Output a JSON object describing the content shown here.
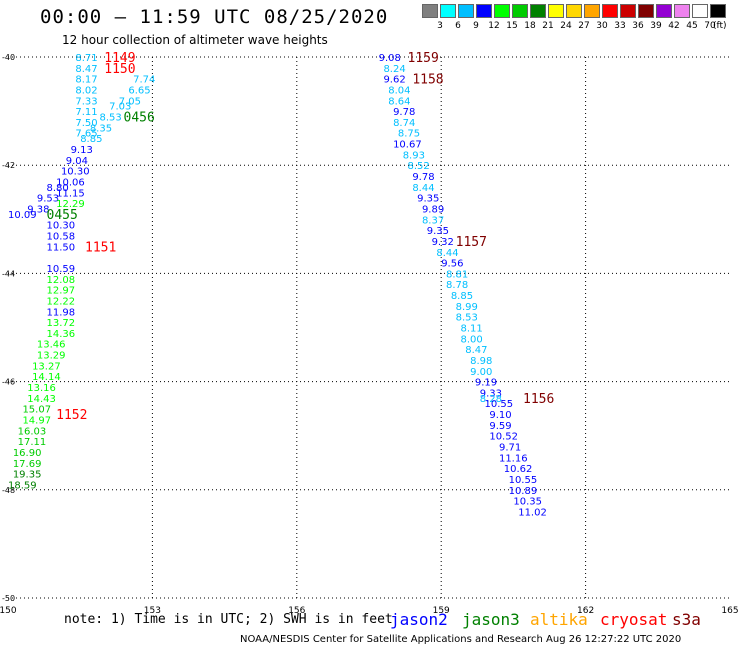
{
  "header": {
    "title": "00:00 – 11:59 UTC 08/25/2020",
    "subtitle": "12 hour collection of altimeter wave heights"
  },
  "scale": {
    "labels": [
      "3",
      "6",
      "9",
      "12",
      "15",
      "18",
      "21",
      "24",
      "27",
      "30",
      "33",
      "36",
      "39",
      "42",
      "45",
      "70"
    ],
    "unit": "(ft)",
    "colors": [
      "#808080",
      "#00ffff",
      "#00bfff",
      "#0000ff",
      "#00ff00",
      "#00cc00",
      "#008000",
      "#ffff00",
      "#ffd700",
      "#ffa500",
      "#ff0000",
      "#cc0000",
      "#800000",
      "#9400d3",
      "#ee82ee",
      "#ffffff",
      "#000000"
    ]
  },
  "footer": {
    "note": "note: 1) Time is in UTC; 2) SWH is in feet",
    "credit": "NOAA/NESDIS Center for Satellite Applications and Research   Aug 26 12:27:22 UTC 2020",
    "satellites": [
      {
        "name": "jason2",
        "color": "#0000ff"
      },
      {
        "name": "jason3",
        "color": "#008000"
      },
      {
        "name": "altika",
        "color": "#ffa500"
      },
      {
        "name": "cryosat",
        "color": "#ff0000"
      },
      {
        "name": "s3a",
        "color": "#800000"
      }
    ]
  },
  "chart_data": {
    "type": "scatter",
    "xlim": [
      150,
      165
    ],
    "ylim": [
      -50,
      -40
    ],
    "xticks": [
      "150",
      "153",
      "156",
      "159",
      "162",
      "165"
    ],
    "yticks": [
      "-40",
      "-42",
      "-44",
      "-46",
      "-48",
      "-50"
    ],
    "grid": true,
    "labels": [
      {
        "t": "8.71",
        "x": 151.4,
        "y": -40.0,
        "c": "#00bfff"
      },
      {
        "t": "8.47",
        "x": 151.4,
        "y": -40.2,
        "c": "#00bfff"
      },
      {
        "t": "8.17",
        "x": 151.4,
        "y": -40.4,
        "c": "#00bfff"
      },
      {
        "t": "8.02",
        "x": 151.4,
        "y": -40.6,
        "c": "#00bfff"
      },
      {
        "t": "7.33",
        "x": 151.4,
        "y": -40.8,
        "c": "#00bfff"
      },
      {
        "t": "7.11",
        "x": 151.4,
        "y": -41.0,
        "c": "#00bfff"
      },
      {
        "t": "7.50",
        "x": 151.4,
        "y": -41.2,
        "c": "#00bfff"
      },
      {
        "t": "7.65",
        "x": 151.4,
        "y": -41.4,
        "c": "#00bfff"
      },
      {
        "t": "7.74",
        "x": 152.6,
        "y": -40.4,
        "c": "#00bfff"
      },
      {
        "t": "6.65",
        "x": 152.5,
        "y": -40.6,
        "c": "#00bfff"
      },
      {
        "t": "7.05",
        "x": 152.3,
        "y": -40.8,
        "c": "#00bfff"
      },
      {
        "t": "7.03",
        "x": 152.1,
        "y": -40.9,
        "c": "#00bfff"
      },
      {
        "t": "8.53",
        "x": 151.9,
        "y": -41.1,
        "c": "#00bfff"
      },
      {
        "t": "8.35",
        "x": 151.7,
        "y": -41.3,
        "c": "#00bfff"
      },
      {
        "t": "8.85",
        "x": 151.5,
        "y": -41.5,
        "c": "#00bfff"
      },
      {
        "t": "9.13",
        "x": 151.3,
        "y": -41.7,
        "c": "#0000ff"
      },
      {
        "t": "9.04",
        "x": 151.2,
        "y": -41.9,
        "c": "#0000ff"
      },
      {
        "t": "10.30",
        "x": 151.1,
        "y": -42.1,
        "c": "#0000ff"
      },
      {
        "t": "10.06",
        "x": 151.0,
        "y": -42.3,
        "c": "#0000ff"
      },
      {
        "t": "8.80",
        "x": 150.8,
        "y": -42.4,
        "c": "#0000ff"
      },
      {
        "t": "11.15",
        "x": 151.0,
        "y": -42.5,
        "c": "#0000ff"
      },
      {
        "t": "9.53",
        "x": 150.6,
        "y": -42.6,
        "c": "#0000ff"
      },
      {
        "t": "12.29",
        "x": 151.0,
        "y": -42.7,
        "c": "#00ff00"
      },
      {
        "t": "9.38",
        "x": 150.4,
        "y": -42.8,
        "c": "#0000ff"
      },
      {
        "t": "10.09",
        "x": 150.0,
        "y": -42.9,
        "c": "#0000ff"
      },
      {
        "t": "10.30",
        "x": 150.8,
        "y": -43.1,
        "c": "#0000ff"
      },
      {
        "t": "10.58",
        "x": 150.8,
        "y": -43.3,
        "c": "#0000ff"
      },
      {
        "t": "11.50",
        "x": 150.8,
        "y": -43.5,
        "c": "#0000ff"
      },
      {
        "t": "10.59",
        "x": 150.8,
        "y": -43.9,
        "c": "#0000ff"
      },
      {
        "t": "12.08",
        "x": 150.8,
        "y": -44.1,
        "c": "#00ff00"
      },
      {
        "t": "12.97",
        "x": 150.8,
        "y": -44.3,
        "c": "#00ff00"
      },
      {
        "t": "12.22",
        "x": 150.8,
        "y": -44.5,
        "c": "#00ff00"
      },
      {
        "t": "11.98",
        "x": 150.8,
        "y": -44.7,
        "c": "#0000ff"
      },
      {
        "t": "13.72",
        "x": 150.8,
        "y": -44.9,
        "c": "#00ff00"
      },
      {
        "t": "14.36",
        "x": 150.8,
        "y": -45.1,
        "c": "#00ff00"
      },
      {
        "t": "13.46",
        "x": 150.6,
        "y": -45.3,
        "c": "#00ff00"
      },
      {
        "t": "13.29",
        "x": 150.6,
        "y": -45.5,
        "c": "#00ff00"
      },
      {
        "t": "13.27",
        "x": 150.5,
        "y": -45.7,
        "c": "#00ff00"
      },
      {
        "t": "14.14",
        "x": 150.5,
        "y": -45.9,
        "c": "#00ff00"
      },
      {
        "t": "13.16",
        "x": 150.4,
        "y": -46.1,
        "c": "#00ff00"
      },
      {
        "t": "14.43",
        "x": 150.4,
        "y": -46.3,
        "c": "#00ff00"
      },
      {
        "t": "15.07",
        "x": 150.3,
        "y": -46.5,
        "c": "#00cc00"
      },
      {
        "t": "14.97",
        "x": 150.3,
        "y": -46.7,
        "c": "#00ff00"
      },
      {
        "t": "16.03",
        "x": 150.2,
        "y": -46.9,
        "c": "#00cc00"
      },
      {
        "t": "17.11",
        "x": 150.2,
        "y": -47.1,
        "c": "#00cc00"
      },
      {
        "t": "16.90",
        "x": 150.1,
        "y": -47.3,
        "c": "#00cc00"
      },
      {
        "t": "17.69",
        "x": 150.1,
        "y": -47.5,
        "c": "#00cc00"
      },
      {
        "t": "19.35",
        "x": 150.1,
        "y": -47.7,
        "c": "#008000"
      },
      {
        "t": "18.59",
        "x": 150.0,
        "y": -47.9,
        "c": "#008000"
      },
      {
        "t": "9.08",
        "x": 157.7,
        "y": -40.0,
        "c": "#0000ff"
      },
      {
        "t": "8.24",
        "x": 157.8,
        "y": -40.2,
        "c": "#00bfff"
      },
      {
        "t": "9.62",
        "x": 157.8,
        "y": -40.4,
        "c": "#0000ff"
      },
      {
        "t": "8.04",
        "x": 157.9,
        "y": -40.6,
        "c": "#00bfff"
      },
      {
        "t": "8.64",
        "x": 157.9,
        "y": -40.8,
        "c": "#00bfff"
      },
      {
        "t": "9.78",
        "x": 158.0,
        "y": -41.0,
        "c": "#0000ff"
      },
      {
        "t": "8.74",
        "x": 158.0,
        "y": -41.2,
        "c": "#00bfff"
      },
      {
        "t": "8.75",
        "x": 158.1,
        "y": -41.4,
        "c": "#00bfff"
      },
      {
        "t": "10.67",
        "x": 158.0,
        "y": -41.6,
        "c": "#0000ff"
      },
      {
        "t": "8.93",
        "x": 158.2,
        "y": -41.8,
        "c": "#00bfff"
      },
      {
        "t": "8.52",
        "x": 158.3,
        "y": -42.0,
        "c": "#00bfff"
      },
      {
        "t": "9.78",
        "x": 158.4,
        "y": -42.2,
        "c": "#0000ff"
      },
      {
        "t": "8.44",
        "x": 158.4,
        "y": -42.4,
        "c": "#00bfff"
      },
      {
        "t": "9.35",
        "x": 158.5,
        "y": -42.6,
        "c": "#0000ff"
      },
      {
        "t": "9.89",
        "x": 158.6,
        "y": -42.8,
        "c": "#0000ff"
      },
      {
        "t": "8.37",
        "x": 158.6,
        "y": -43.0,
        "c": "#00bfff"
      },
      {
        "t": "9.35",
        "x": 158.7,
        "y": -43.2,
        "c": "#0000ff"
      },
      {
        "t": "9.32",
        "x": 158.8,
        "y": -43.4,
        "c": "#0000ff"
      },
      {
        "t": "8.44",
        "x": 158.9,
        "y": -43.6,
        "c": "#00bfff"
      },
      {
        "t": "9.56",
        "x": 159.0,
        "y": -43.8,
        "c": "#0000ff"
      },
      {
        "t": "8.81",
        "x": 159.1,
        "y": -44.0,
        "c": "#00bfff"
      },
      {
        "t": "8.78",
        "x": 159.1,
        "y": -44.2,
        "c": "#00bfff"
      },
      {
        "t": "8.85",
        "x": 159.2,
        "y": -44.4,
        "c": "#00bfff"
      },
      {
        "t": "8.99",
        "x": 159.3,
        "y": -44.6,
        "c": "#00bfff"
      },
      {
        "t": "8.53",
        "x": 159.3,
        "y": -44.8,
        "c": "#00bfff"
      },
      {
        "t": "8.11",
        "x": 159.4,
        "y": -45.0,
        "c": "#00bfff"
      },
      {
        "t": "8.00",
        "x": 159.4,
        "y": -45.2,
        "c": "#00bfff"
      },
      {
        "t": "8.47",
        "x": 159.5,
        "y": -45.4,
        "c": "#00bfff"
      },
      {
        "t": "8.98",
        "x": 159.6,
        "y": -45.6,
        "c": "#00bfff"
      },
      {
        "t": "9.00",
        "x": 159.6,
        "y": -45.8,
        "c": "#00bfff"
      },
      {
        "t": "9.19",
        "x": 159.7,
        "y": -46.0,
        "c": "#0000ff"
      },
      {
        "t": "9.33",
        "x": 159.8,
        "y": -46.2,
        "c": "#0000ff"
      },
      {
        "t": "8.28",
        "x": 159.8,
        "y": -46.3,
        "c": "#00bfff"
      },
      {
        "t": "10.55",
        "x": 159.9,
        "y": -46.4,
        "c": "#0000ff"
      },
      {
        "t": "9.10",
        "x": 160.0,
        "y": -46.6,
        "c": "#0000ff"
      },
      {
        "t": "9.59",
        "x": 160.0,
        "y": -46.8,
        "c": "#0000ff"
      },
      {
        "t": "10.52",
        "x": 160.0,
        "y": -47.0,
        "c": "#0000ff"
      },
      {
        "t": "9.71",
        "x": 160.2,
        "y": -47.2,
        "c": "#0000ff"
      },
      {
        "t": "11.16",
        "x": 160.2,
        "y": -47.4,
        "c": "#0000ff"
      },
      {
        "t": "10.62",
        "x": 160.3,
        "y": -47.6,
        "c": "#0000ff"
      },
      {
        "t": "10.55",
        "x": 160.4,
        "y": -47.8,
        "c": "#0000ff"
      },
      {
        "t": "10.89",
        "x": 160.4,
        "y": -48.0,
        "c": "#0000ff"
      },
      {
        "t": "10.35",
        "x": 160.5,
        "y": -48.2,
        "c": "#0000ff"
      },
      {
        "t": "11.02",
        "x": 160.6,
        "y": -48.4,
        "c": "#0000ff"
      }
    ],
    "annotations": [
      {
        "t": "1149",
        "x": 152.0,
        "y": -40.0,
        "c": "#ff0000"
      },
      {
        "t": "1150",
        "x": 152.0,
        "y": -40.2,
        "c": "#ff0000"
      },
      {
        "t": "0456",
        "x": 152.4,
        "y": -41.1,
        "c": "#008000"
      },
      {
        "t": "0455",
        "x": 150.8,
        "y": -42.9,
        "c": "#008000"
      },
      {
        "t": "1151",
        "x": 151.6,
        "y": -43.5,
        "c": "#ff0000"
      },
      {
        "t": "1152",
        "x": 151.0,
        "y": -46.6,
        "c": "#ff0000"
      },
      {
        "t": "1159",
        "x": 158.3,
        "y": -40.0,
        "c": "#800000"
      },
      {
        "t": "1158",
        "x": 158.4,
        "y": -40.4,
        "c": "#800000"
      },
      {
        "t": "1157",
        "x": 159.3,
        "y": -43.4,
        "c": "#800000"
      },
      {
        "t": "1156",
        "x": 160.7,
        "y": -46.3,
        "c": "#800000"
      }
    ]
  }
}
